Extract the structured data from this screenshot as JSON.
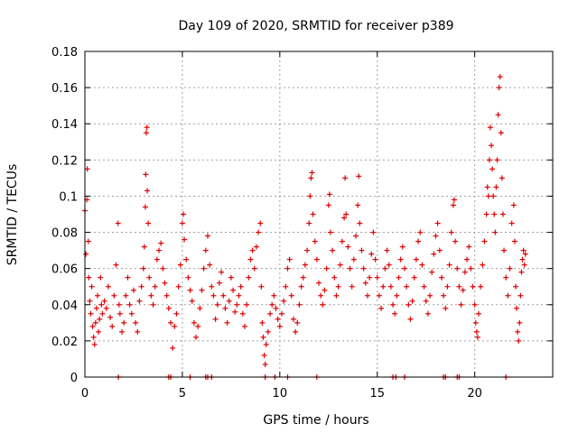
{
  "chart_data": {
    "type": "scatter",
    "title": "Day 109 of 2020, SRMTID for receiver p389",
    "xlabel": "GPS time / hours",
    "ylabel": "SRMTID / TECUs",
    "xlim": [
      0,
      24
    ],
    "ylim": [
      0,
      0.18
    ],
    "xticks": [
      0,
      5,
      10,
      15,
      20
    ],
    "xtick_labels": [
      "0",
      "5",
      "10",
      "15",
      "20"
    ],
    "yticks": [
      0,
      0.02,
      0.04,
      0.06,
      0.08,
      0.1,
      0.12,
      0.14,
      0.16,
      0.18
    ],
    "ytick_labels": [
      "0",
      "0.02",
      "0.04",
      "0.06",
      "0.08",
      "0.1",
      "0.12",
      "0.14",
      "0.16",
      "0.18"
    ],
    "grid": true,
    "marker": "+",
    "series": [
      {
        "name": "SRMTID",
        "color": "#e00000",
        "points": [
          [
            0.0,
            0.092
          ],
          [
            0.05,
            0.068
          ],
          [
            0.1,
            0.098
          ],
          [
            0.12,
            0.115
          ],
          [
            0.18,
            0.075
          ],
          [
            0.2,
            0.055
          ],
          [
            0.25,
            0.042
          ],
          [
            0.3,
            0.035
          ],
          [
            0.35,
            0.05
          ],
          [
            0.4,
            0.028
          ],
          [
            0.45,
            0.022
          ],
          [
            0.5,
            0.018
          ],
          [
            0.55,
            0.03
          ],
          [
            0.6,
            0.038
          ],
          [
            0.65,
            0.045
          ],
          [
            0.7,
            0.025
          ],
          [
            0.75,
            0.032
          ],
          [
            0.8,
            0.055
          ],
          [
            0.85,
            0.04
          ],
          [
            0.9,
            0.035
          ],
          [
            1.0,
            0.042
          ],
          [
            1.1,
            0.038
          ],
          [
            1.2,
            0.05
          ],
          [
            1.3,
            0.033
          ],
          [
            1.4,
            0.028
          ],
          [
            1.5,
            0.045
          ],
          [
            1.6,
            0.062
          ],
          [
            1.7,
            0.085
          ],
          [
            1.75,
            0.04
          ],
          [
            1.8,
            0.035
          ],
          [
            1.9,
            0.025
          ],
          [
            2.0,
            0.03
          ],
          [
            2.1,
            0.045
          ],
          [
            2.2,
            0.055
          ],
          [
            2.3,
            0.04
          ],
          [
            2.4,
            0.035
          ],
          [
            2.5,
            0.048
          ],
          [
            2.6,
            0.03
          ],
          [
            2.7,
            0.025
          ],
          [
            2.8,
            0.042
          ],
          [
            2.9,
            0.05
          ],
          [
            3.0,
            0.06
          ],
          [
            3.05,
            0.072
          ],
          [
            3.1,
            0.094
          ],
          [
            3.12,
            0.112
          ],
          [
            3.15,
            0.135
          ],
          [
            3.18,
            0.138
          ],
          [
            3.2,
            0.103
          ],
          [
            3.25,
            0.085
          ],
          [
            3.3,
            0.055
          ],
          [
            3.4,
            0.045
          ],
          [
            3.5,
            0.04
          ],
          [
            3.6,
            0.05
          ],
          [
            3.7,
            0.065
          ],
          [
            3.8,
            0.07
          ],
          [
            3.9,
            0.074
          ],
          [
            4.0,
            0.06
          ],
          [
            4.1,
            0.052
          ],
          [
            4.2,
            0.045
          ],
          [
            4.3,
            0.038
          ],
          [
            4.4,
            0.03
          ],
          [
            4.5,
            0.016
          ],
          [
            4.6,
            0.028
          ],
          [
            4.7,
            0.035
          ],
          [
            4.8,
            0.05
          ],
          [
            4.9,
            0.062
          ],
          [
            5.0,
            0.085
          ],
          [
            5.05,
            0.09
          ],
          [
            5.1,
            0.076
          ],
          [
            5.2,
            0.065
          ],
          [
            5.3,
            0.055
          ],
          [
            5.4,
            0.048
          ],
          [
            5.5,
            0.042
          ],
          [
            5.6,
            0.03
          ],
          [
            5.7,
            0.022
          ],
          [
            5.8,
            0.028
          ],
          [
            5.9,
            0.038
          ],
          [
            6.0,
            0.048
          ],
          [
            6.1,
            0.06
          ],
          [
            6.2,
            0.07
          ],
          [
            6.3,
            0.078
          ],
          [
            6.4,
            0.062
          ],
          [
            6.5,
            0.05
          ],
          [
            6.6,
            0.045
          ],
          [
            6.7,
            0.032
          ],
          [
            6.8,
            0.04
          ],
          [
            6.9,
            0.052
          ],
          [
            7.0,
            0.058
          ],
          [
            7.1,
            0.045
          ],
          [
            7.2,
            0.038
          ],
          [
            7.3,
            0.03
          ],
          [
            7.4,
            0.042
          ],
          [
            7.5,
            0.055
          ],
          [
            7.6,
            0.048
          ],
          [
            7.7,
            0.036
          ],
          [
            7.8,
            0.04
          ],
          [
            7.9,
            0.045
          ],
          [
            8.0,
            0.05
          ],
          [
            8.1,
            0.035
          ],
          [
            8.2,
            0.028
          ],
          [
            8.3,
            0.04
          ],
          [
            8.4,
            0.055
          ],
          [
            8.5,
            0.065
          ],
          [
            8.6,
            0.07
          ],
          [
            8.7,
            0.06
          ],
          [
            8.8,
            0.072
          ],
          [
            8.9,
            0.08
          ],
          [
            9.0,
            0.085
          ],
          [
            9.05,
            0.05
          ],
          [
            9.1,
            0.03
          ],
          [
            9.15,
            0.022
          ],
          [
            9.2,
            0.012
          ],
          [
            9.25,
            0.007
          ],
          [
            9.3,
            0.018
          ],
          [
            9.4,
            0.025
          ],
          [
            9.5,
            0.035
          ],
          [
            9.6,
            0.04
          ],
          [
            9.7,
            0.045
          ],
          [
            9.8,
            0.038
          ],
          [
            9.9,
            0.032
          ],
          [
            10.0,
            0.028
          ],
          [
            10.1,
            0.035
          ],
          [
            10.2,
            0.042
          ],
          [
            10.3,
            0.05
          ],
          [
            10.4,
            0.06
          ],
          [
            10.5,
            0.065
          ],
          [
            10.6,
            0.045
          ],
          [
            10.7,
            0.032
          ],
          [
            10.8,
            0.025
          ],
          [
            10.9,
            0.03
          ],
          [
            11.0,
            0.04
          ],
          [
            11.1,
            0.05
          ],
          [
            11.2,
            0.055
          ],
          [
            11.3,
            0.062
          ],
          [
            11.4,
            0.07
          ],
          [
            11.5,
            0.085
          ],
          [
            11.55,
            0.1
          ],
          [
            11.6,
            0.11
          ],
          [
            11.65,
            0.113
          ],
          [
            11.7,
            0.09
          ],
          [
            11.8,
            0.075
          ],
          [
            11.9,
            0.065
          ],
          [
            12.0,
            0.052
          ],
          [
            12.1,
            0.045
          ],
          [
            12.2,
            0.04
          ],
          [
            12.3,
            0.048
          ],
          [
            12.4,
            0.06
          ],
          [
            12.5,
            0.095
          ],
          [
            12.55,
            0.101
          ],
          [
            12.6,
            0.08
          ],
          [
            12.7,
            0.07
          ],
          [
            12.8,
            0.055
          ],
          [
            12.9,
            0.045
          ],
          [
            13.0,
            0.05
          ],
          [
            13.1,
            0.062
          ],
          [
            13.2,
            0.075
          ],
          [
            13.3,
            0.088
          ],
          [
            13.35,
            0.11
          ],
          [
            13.4,
            0.09
          ],
          [
            13.5,
            0.072
          ],
          [
            13.6,
            0.06
          ],
          [
            13.7,
            0.05
          ],
          [
            13.8,
            0.065
          ],
          [
            13.9,
            0.078
          ],
          [
            14.0,
            0.095
          ],
          [
            14.05,
            0.111
          ],
          [
            14.1,
            0.085
          ],
          [
            14.2,
            0.07
          ],
          [
            14.3,
            0.06
          ],
          [
            14.4,
            0.052
          ],
          [
            14.5,
            0.045
          ],
          [
            14.6,
            0.055
          ],
          [
            14.7,
            0.068
          ],
          [
            14.8,
            0.08
          ],
          [
            14.9,
            0.065
          ],
          [
            15.0,
            0.055
          ],
          [
            15.1,
            0.045
          ],
          [
            15.2,
            0.038
          ],
          [
            15.3,
            0.05
          ],
          [
            15.4,
            0.06
          ],
          [
            15.5,
            0.07
          ],
          [
            15.6,
            0.062
          ],
          [
            15.7,
            0.05
          ],
          [
            15.8,
            0.04
          ],
          [
            15.9,
            0.035
          ],
          [
            16.0,
            0.045
          ],
          [
            16.1,
            0.055
          ],
          [
            16.2,
            0.065
          ],
          [
            16.3,
            0.072
          ],
          [
            16.4,
            0.06
          ],
          [
            16.5,
            0.05
          ],
          [
            16.6,
            0.04
          ],
          [
            16.7,
            0.032
          ],
          [
            16.8,
            0.042
          ],
          [
            16.9,
            0.055
          ],
          [
            17.0,
            0.065
          ],
          [
            17.1,
            0.075
          ],
          [
            17.2,
            0.08
          ],
          [
            17.3,
            0.062
          ],
          [
            17.4,
            0.05
          ],
          [
            17.5,
            0.042
          ],
          [
            17.6,
            0.035
          ],
          [
            17.7,
            0.045
          ],
          [
            17.8,
            0.058
          ],
          [
            17.9,
            0.068
          ],
          [
            18.0,
            0.078
          ],
          [
            18.1,
            0.085
          ],
          [
            18.2,
            0.07
          ],
          [
            18.3,
            0.055
          ],
          [
            18.4,
            0.045
          ],
          [
            18.5,
            0.038
          ],
          [
            18.6,
            0.05
          ],
          [
            18.7,
            0.062
          ],
          [
            18.8,
            0.08
          ],
          [
            18.9,
            0.095
          ],
          [
            18.95,
            0.098
          ],
          [
            19.0,
            0.075
          ],
          [
            19.1,
            0.06
          ],
          [
            19.2,
            0.05
          ],
          [
            19.3,
            0.04
          ],
          [
            19.4,
            0.048
          ],
          [
            19.5,
            0.058
          ],
          [
            19.6,
            0.065
          ],
          [
            19.7,
            0.072
          ],
          [
            19.8,
            0.06
          ],
          [
            19.9,
            0.05
          ],
          [
            20.0,
            0.04
          ],
          [
            20.05,
            0.03
          ],
          [
            20.1,
            0.025
          ],
          [
            20.15,
            0.022
          ],
          [
            20.2,
            0.035
          ],
          [
            20.3,
            0.05
          ],
          [
            20.4,
            0.062
          ],
          [
            20.5,
            0.075
          ],
          [
            20.6,
            0.09
          ],
          [
            20.65,
            0.105
          ],
          [
            20.7,
            0.1
          ],
          [
            20.75,
            0.12
          ],
          [
            20.8,
            0.138
          ],
          [
            20.85,
            0.128
          ],
          [
            20.9,
            0.115
          ],
          [
            20.95,
            0.1
          ],
          [
            21.0,
            0.09
          ],
          [
            21.05,
            0.08
          ],
          [
            21.1,
            0.105
          ],
          [
            21.15,
            0.12
          ],
          [
            21.2,
            0.145
          ],
          [
            21.25,
            0.16
          ],
          [
            21.3,
            0.166
          ],
          [
            21.35,
            0.135
          ],
          [
            21.4,
            0.11
          ],
          [
            21.45,
            0.09
          ],
          [
            21.5,
            0.07
          ],
          [
            21.6,
            0.055
          ],
          [
            21.7,
            0.045
          ],
          [
            21.8,
            0.06
          ],
          [
            21.9,
            0.085
          ],
          [
            22.0,
            0.095
          ],
          [
            22.05,
            0.075
          ],
          [
            22.1,
            0.05
          ],
          [
            22.15,
            0.038
          ],
          [
            22.2,
            0.025
          ],
          [
            22.25,
            0.02
          ],
          [
            22.3,
            0.03
          ],
          [
            22.35,
            0.045
          ],
          [
            22.4,
            0.058
          ],
          [
            22.45,
            0.065
          ],
          [
            22.5,
            0.07
          ],
          [
            22.55,
            0.062
          ],
          [
            22.6,
            0.068
          ],
          [
            1.72,
            0.0
          ],
          [
            4.3,
            0.0
          ],
          [
            4.4,
            0.0
          ],
          [
            5.4,
            0.0
          ],
          [
            6.2,
            0.0
          ],
          [
            6.3,
            0.0
          ],
          [
            6.5,
            0.0
          ],
          [
            9.25,
            0.0
          ],
          [
            9.75,
            0.0
          ],
          [
            10.4,
            0.0
          ],
          [
            11.9,
            0.0
          ],
          [
            15.8,
            0.0
          ],
          [
            15.95,
            0.0
          ],
          [
            16.4,
            0.0
          ],
          [
            18.4,
            0.0
          ],
          [
            18.5,
            0.0
          ],
          [
            19.1,
            0.0
          ],
          [
            19.2,
            0.0
          ],
          [
            21.6,
            0.0
          ]
        ]
      }
    ]
  }
}
